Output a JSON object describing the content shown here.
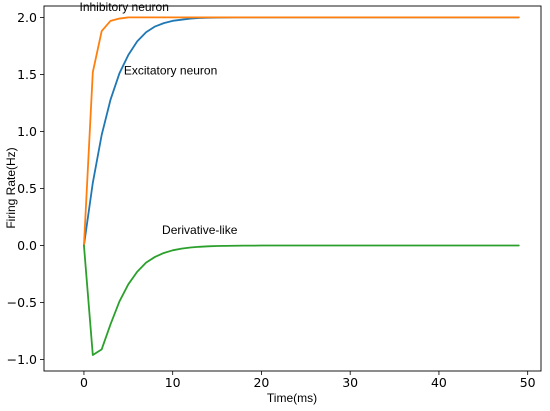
{
  "chart_data": {
    "type": "line",
    "xlabel": "Time(ms)",
    "ylabel": "Firing Rate(Hz)",
    "xlim": [
      -4.5,
      51.5
    ],
    "ylim": [
      -1.1,
      2.1
    ],
    "xticks": [
      0,
      10,
      20,
      30,
      40,
      50
    ],
    "yticks": [
      -1.0,
      -0.5,
      0.0,
      0.5,
      1.0,
      1.5,
      2.0
    ],
    "grid": false,
    "series": [
      {
        "name": "Excitatory neuron",
        "color": "#1f77b4",
        "x": [
          0,
          1,
          2,
          3,
          4,
          5,
          6,
          7,
          8,
          9,
          10,
          11,
          12,
          13,
          14,
          15,
          16,
          17,
          18,
          19,
          20,
          21,
          22,
          23,
          24,
          25,
          26,
          27,
          28,
          29,
          30,
          31,
          32,
          33,
          34,
          35,
          36,
          37,
          38,
          39,
          40,
          41,
          42,
          43,
          44,
          45,
          46,
          47,
          48,
          49
        ],
        "y": [
          0.0,
          0.55,
          0.97,
          1.28,
          1.51,
          1.67,
          1.79,
          1.87,
          1.92,
          1.95,
          1.97,
          1.98,
          1.99,
          1.995,
          1.997,
          1.998,
          1.999,
          2.0,
          2.0,
          2.0,
          2.0,
          2.0,
          2.0,
          2.0,
          2.0,
          2.0,
          2.0,
          2.0,
          2.0,
          2.0,
          2.0,
          2.0,
          2.0,
          2.0,
          2.0,
          2.0,
          2.0,
          2.0,
          2.0,
          2.0,
          2.0,
          2.0,
          2.0,
          2.0,
          2.0,
          2.0,
          2.0,
          2.0,
          2.0,
          2.0
        ]
      },
      {
        "name": "Inhibitory neuron",
        "color": "#ff7f0e",
        "x": [
          0,
          1,
          2,
          3,
          4,
          5,
          6,
          7,
          8,
          9,
          10,
          11,
          12,
          13,
          14,
          15,
          16,
          17,
          18,
          19,
          20,
          21,
          22,
          23,
          24,
          25,
          26,
          27,
          28,
          29,
          30,
          31,
          32,
          33,
          34,
          35,
          36,
          37,
          38,
          39,
          40,
          41,
          42,
          43,
          44,
          45,
          46,
          47,
          48,
          49
        ],
        "y": [
          0.0,
          1.52,
          1.88,
          1.97,
          1.99,
          2.0,
          2.0,
          2.0,
          2.0,
          2.0,
          2.0,
          2.0,
          2.0,
          2.0,
          2.0,
          2.0,
          2.0,
          2.0,
          2.0,
          2.0,
          2.0,
          2.0,
          2.0,
          2.0,
          2.0,
          2.0,
          2.0,
          2.0,
          2.0,
          2.0,
          2.0,
          2.0,
          2.0,
          2.0,
          2.0,
          2.0,
          2.0,
          2.0,
          2.0,
          2.0,
          2.0,
          2.0,
          2.0,
          2.0,
          2.0,
          2.0,
          2.0,
          2.0,
          2.0,
          2.0
        ]
      },
      {
        "name": "Derivative-like",
        "color": "#2ca02c",
        "x": [
          0,
          1,
          2,
          3,
          4,
          5,
          6,
          7,
          8,
          9,
          10,
          11,
          12,
          13,
          14,
          15,
          16,
          17,
          18,
          19,
          20,
          21,
          22,
          23,
          24,
          25,
          26,
          27,
          28,
          29,
          30,
          31,
          32,
          33,
          34,
          35,
          36,
          37,
          38,
          39,
          40,
          41,
          42,
          43,
          44,
          45,
          46,
          47,
          48,
          49
        ],
        "y": [
          0.0,
          -0.96,
          -0.91,
          -0.69,
          -0.49,
          -0.34,
          -0.23,
          -0.15,
          -0.1,
          -0.065,
          -0.042,
          -0.027,
          -0.017,
          -0.011,
          -0.007,
          -0.004,
          -0.003,
          -0.002,
          -0.001,
          -0.001,
          0.0,
          0.0,
          0.0,
          0.0,
          0.0,
          0.0,
          0.0,
          0.0,
          0.0,
          0.0,
          0.0,
          0.0,
          0.0,
          0.0,
          0.0,
          0.0,
          0.0,
          0.0,
          0.0,
          0.0,
          0.0,
          0.0,
          0.0,
          0.0,
          0.0,
          0.0,
          0.0,
          0.0,
          0.0,
          0.0
        ]
      }
    ],
    "annotations": [
      {
        "text": "Inhibitory neuron",
        "x": -0.5,
        "y": 2.055
      },
      {
        "text": "Excitatory neuron",
        "x": 4.5,
        "y": 1.5
      },
      {
        "text": "Derivative-like",
        "x": 8.8,
        "y": 0.1
      }
    ]
  }
}
